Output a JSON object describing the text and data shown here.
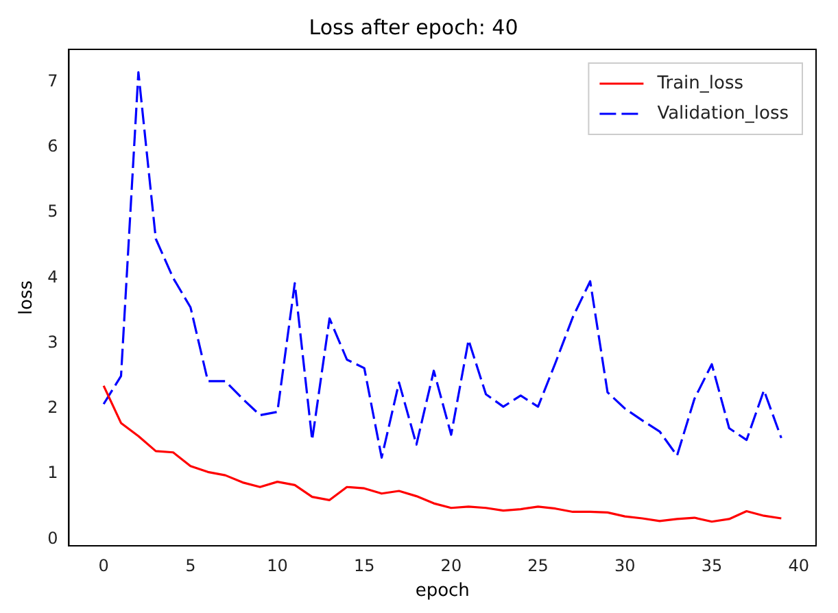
{
  "chart_data": {
    "type": "line",
    "title": "Loss after epoch: 40",
    "xlabel": "epoch",
    "ylabel": "loss",
    "x": [
      0,
      1,
      2,
      3,
      4,
      5,
      6,
      7,
      8,
      9,
      10,
      11,
      12,
      13,
      14,
      15,
      16,
      17,
      18,
      19,
      20,
      21,
      22,
      23,
      24,
      25,
      26,
      27,
      28,
      29,
      30,
      31,
      32,
      33,
      34,
      35,
      36,
      37,
      38,
      39
    ],
    "series": [
      {
        "name": "Train_loss",
        "color": "#ff0000",
        "line_style": "solid",
        "values": [
          2.35,
          1.78,
          1.58,
          1.35,
          1.33,
          1.12,
          1.03,
          0.98,
          0.87,
          0.8,
          0.88,
          0.83,
          0.65,
          0.6,
          0.8,
          0.78,
          0.7,
          0.74,
          0.66,
          0.55,
          0.48,
          0.5,
          0.48,
          0.44,
          0.46,
          0.5,
          0.47,
          0.42,
          0.42,
          0.41,
          0.35,
          0.32,
          0.28,
          0.31,
          0.33,
          0.27,
          0.31,
          0.43,
          0.36,
          0.32
        ]
      },
      {
        "name": "Validation_loss",
        "color": "#0000ff",
        "line_style": "dashed",
        "values": [
          2.07,
          2.5,
          7.15,
          4.6,
          4.0,
          3.55,
          2.42,
          2.42,
          2.15,
          1.9,
          1.95,
          3.92,
          1.52,
          3.38,
          2.75,
          2.62,
          1.25,
          2.4,
          1.45,
          2.58,
          1.6,
          3.05,
          2.22,
          2.03,
          2.2,
          2.03,
          2.7,
          3.4,
          3.95,
          2.25,
          2.0,
          1.82,
          1.65,
          1.28,
          2.15,
          2.68,
          1.7,
          1.52,
          2.28,
          1.55
        ]
      }
    ],
    "xlim": [
      -2,
      41
    ],
    "xticks": [
      0,
      5,
      10,
      15,
      20,
      25,
      30,
      35,
      40
    ],
    "ylim": [
      -0.1,
      7.5
    ],
    "yticks": [
      0,
      1,
      2,
      3,
      4,
      5,
      6,
      7
    ],
    "grid": false,
    "legend": "top right",
    "marker": "none"
  }
}
